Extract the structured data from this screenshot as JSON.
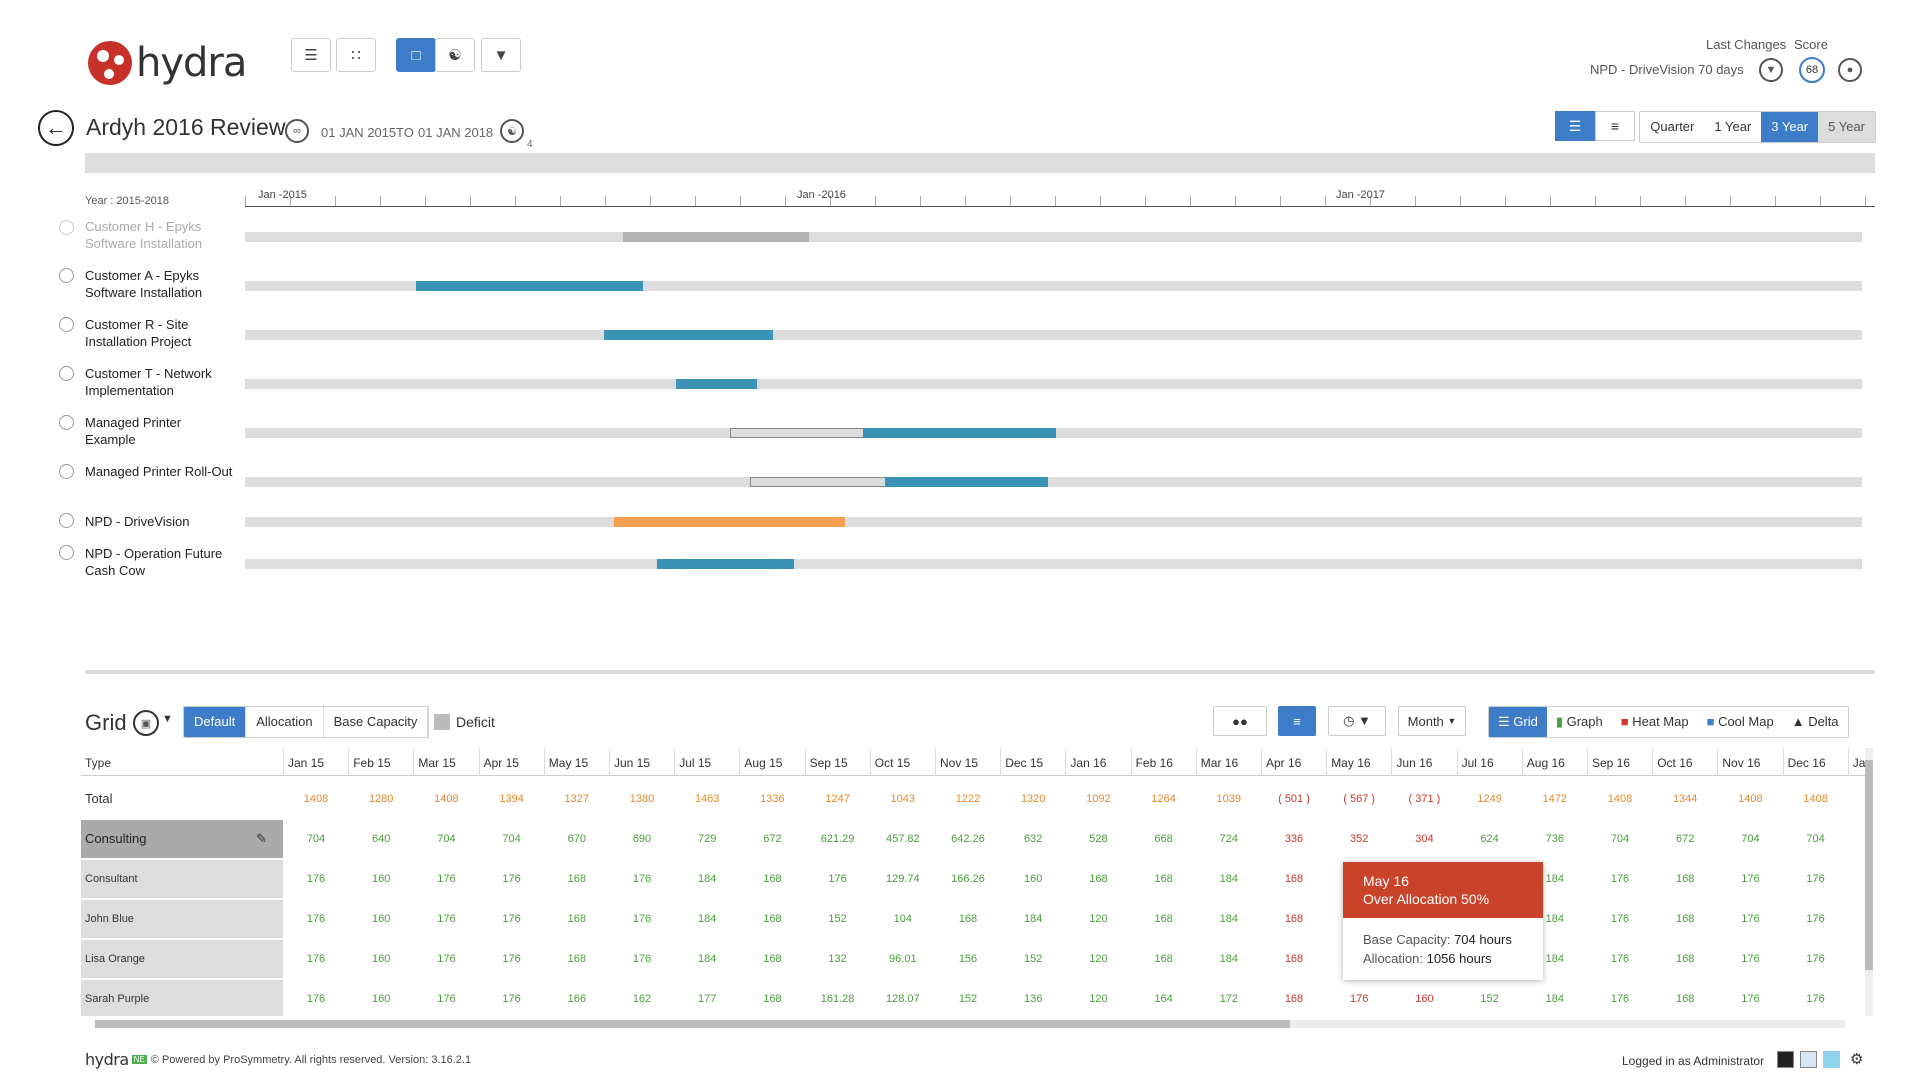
{
  "app": {
    "logo_text": "hydra"
  },
  "header": {
    "last_changes_label": "Last Changes",
    "score_label": "Score",
    "last_changes_value": "NPD  - DriveVision 70 days",
    "score_value": "68"
  },
  "title": {
    "project": "Ardyh 2016 Review",
    "date_from": "01 JAN 2015",
    "date_to_label": "TO",
    "date_to": "01 JAN 2018",
    "badge": "4"
  },
  "range_buttons": [
    "Quarter",
    "1 Year",
    "3 Year",
    "5 Year"
  ],
  "range_selected": "3 Year",
  "timeline": {
    "year_label": "Year : 2015-2018",
    "axis_labels": [
      "Jan -2015",
      "Jan -2016",
      "Jan -2017"
    ],
    "projects": [
      {
        "name": "Customer H - Epyks Software Installation",
        "muted": true
      },
      {
        "name": "Customer A - Epyks Software Installation"
      },
      {
        "name": "Customer R - Site Installation Project"
      },
      {
        "name": "Customer T - Network Implementation"
      },
      {
        "name": "Managed Printer Example"
      },
      {
        "name": "Managed Printer Roll-Out"
      },
      {
        "name": "NPD  - DriveVision"
      },
      {
        "name": "NPD - Operation Future Cash Cow"
      }
    ]
  },
  "grid": {
    "title": "Grid",
    "modes": [
      "Default",
      "Allocation",
      "Base Capacity"
    ],
    "mode_selected": "Default",
    "deficit_label": "Deficit",
    "period_select": "Month",
    "views": [
      "Grid",
      "Graph",
      "Heat Map",
      "Cool Map",
      "Delta"
    ],
    "view_selected": "Grid",
    "type_header": "Type",
    "months": [
      "Jan 15",
      "Feb 15",
      "Mar 15",
      "Apr 15",
      "May 15",
      "Jun 15",
      "Jul 15",
      "Aug 15",
      "Sep 15",
      "Oct 15",
      "Nov 15",
      "Dec 15",
      "Jan 16",
      "Feb 16",
      "Mar 16",
      "Apr 16",
      "May 16",
      "Jun 16",
      "Jul 16",
      "Aug 16",
      "Sep 16",
      "Oct 16",
      "Nov 16",
      "Dec 16",
      "Jar"
    ],
    "rows": [
      {
        "label": "Total",
        "values": [
          "1408",
          "1280",
          "1408",
          "1394",
          "1327",
          "1380",
          "1463",
          "1336",
          "1247",
          "1043",
          "1222",
          "1320",
          "1092",
          "1264",
          "1039",
          "( 501 )",
          "( 567 )",
          "( 371 )",
          "1249",
          "1472",
          "1408",
          "1344",
          "1408",
          "1408"
        ]
      },
      {
        "label": "Consulting",
        "values": [
          "704",
          "640",
          "704",
          "704",
          "670",
          "690",
          "729",
          "672",
          "621.29",
          "457.82",
          "642.26",
          "632",
          "528",
          "668",
          "724",
          "336",
          "352",
          "304",
          "624",
          "736",
          "704",
          "672",
          "704",
          "704"
        ]
      },
      {
        "label": "Consultant",
        "values": [
          "176",
          "160",
          "176",
          "176",
          "168",
          "176",
          "184",
          "168",
          "176",
          "129.74",
          "166.26",
          "160",
          "168",
          "168",
          "184",
          "168",
          "",
          "",
          "",
          "184",
          "176",
          "168",
          "176",
          "176"
        ]
      },
      {
        "label": "John Blue",
        "values": [
          "176",
          "160",
          "176",
          "176",
          "168",
          "176",
          "184",
          "168",
          "152",
          "104",
          "168",
          "184",
          "120",
          "168",
          "184",
          "168",
          "",
          "",
          "",
          "184",
          "176",
          "168",
          "176",
          "176"
        ]
      },
      {
        "label": "Lisa Orange",
        "values": [
          "176",
          "160",
          "176",
          "176",
          "168",
          "176",
          "184",
          "168",
          "132",
          "96.01",
          "156",
          "152",
          "120",
          "168",
          "184",
          "168",
          "",
          "",
          "",
          "184",
          "176",
          "168",
          "176",
          "176"
        ]
      },
      {
        "label": "Sarah Purple",
        "values": [
          "176",
          "160",
          "176",
          "176",
          "166",
          "162",
          "177",
          "168",
          "161.28",
          "128.07",
          "152",
          "136",
          "120",
          "164",
          "172",
          "168",
          "176",
          "160",
          "152",
          "184",
          "176",
          "168",
          "176",
          "176"
        ]
      }
    ]
  },
  "tooltip": {
    "month": "May 16",
    "status": "Over Allocation 50%",
    "base_label": "Base Capacity:",
    "base_value": "704 hours",
    "alloc_label": "Allocation:",
    "alloc_value": "1056 hours"
  },
  "footer": {
    "logo": "hydra",
    "tag": "NE",
    "copyright": "© Powered by ProSymmetry. All rights reserved. Version: 3.16.2.1",
    "logged_in": "Logged in as Administrator"
  },
  "colors": {
    "accent": "#3d7cc9",
    "bar_blue": "#3a93b5",
    "bar_orange": "#f5a050",
    "over": "#c9422a"
  }
}
